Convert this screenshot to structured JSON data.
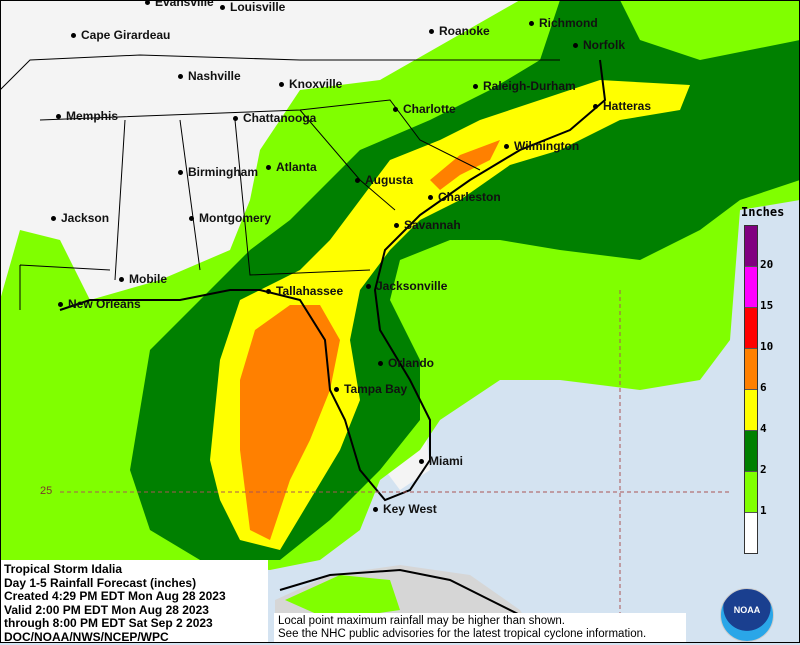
{
  "title_block": {
    "lines": [
      "Tropical Storm Idalia",
      "Day 1-5 Rainfall Forecast (inches)",
      "Created 4:29 PM EDT Mon Aug 28 2023",
      "Valid 2:00 PM EDT Mon Aug 28 2023",
      "through 8:00 PM EDT Sat Sep 2 2023",
      "DOC/NOAA/NWS/NCEP/WPC"
    ]
  },
  "note": {
    "line1": "Local point maximum rainfall may be higher than shown.",
    "line2": "See the NHC public advisories for the latest tropical cyclone information."
  },
  "legend": {
    "title": "Inches",
    "categories": [
      {
        "label": "20",
        "color": "#800080"
      },
      {
        "label": "15",
        "color": "#ff00ff"
      },
      {
        "label": "10",
        "color": "#ff0000"
      },
      {
        "label": "6",
        "color": "#ff8000"
      },
      {
        "label": "4",
        "color": "#ffff00"
      },
      {
        "label": "2",
        "color": "#008000"
      },
      {
        "label": "1",
        "color": "#80ff00"
      },
      {
        "label": "",
        "color": "#ffffff"
      }
    ]
  },
  "latitude_label": "25",
  "logo": "NOAA",
  "cities": [
    "Evansville",
    "Louisville",
    "Cape Girardeau",
    "Roanoke",
    "Richmond",
    "Norfolk",
    "Nashville",
    "Knoxville",
    "Raleigh-Durham",
    "Memphis",
    "Chattanooga",
    "Charlotte",
    "Hatteras",
    "Wilmington",
    "Atlanta",
    "Birmingham",
    "Augusta",
    "Charleston",
    "Jackson",
    "Montgomery",
    "Savannah",
    "Mobile",
    "Tallahassee",
    "Jacksonville",
    "New Orleans",
    "Orlando",
    "Tampa Bay",
    "Miami",
    "Key West"
  ]
}
